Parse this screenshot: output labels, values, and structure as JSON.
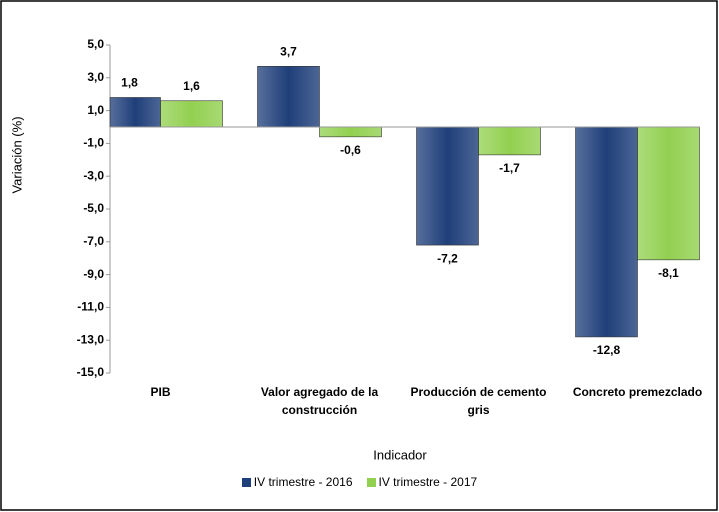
{
  "chart_data": {
    "type": "bar",
    "y_label": "Variación  (%)",
    "x_label": "Indicador",
    "categories": [
      "PIB",
      "Valor agregado de la construcción",
      "Producción de cemento gris",
      "Concreto premezclado"
    ],
    "series": [
      {
        "name": "IV trimestre - 2016",
        "color": "#1f3f7a",
        "values": [
          1.8,
          3.7,
          -7.2,
          -12.8
        ],
        "value_labels": [
          "1,8",
          "3,7",
          "-7,2",
          "-12,8"
        ]
      },
      {
        "name": "IV trimestre - 2017",
        "color": "#92d050",
        "values": [
          1.6,
          -0.6,
          -1.7,
          -8.1
        ],
        "value_labels": [
          "1,6",
          "-0,6",
          "-1,7",
          "-8,1"
        ]
      }
    ],
    "ylim": [
      -15,
      5
    ],
    "yticks": [
      {
        "value": 5,
        "label": "5,0"
      },
      {
        "value": 3,
        "label": "3,0"
      },
      {
        "value": 1,
        "label": "1,0"
      },
      {
        "value": -1,
        "label": "-1,0"
      },
      {
        "value": -3,
        "label": "-3,0"
      },
      {
        "value": -5,
        "label": "-5,0"
      },
      {
        "value": -7,
        "label": "-7,0"
      },
      {
        "value": -9,
        "label": "-9,0"
      },
      {
        "value": -11,
        "label": "-11,0"
      },
      {
        "value": -13,
        "label": "-13,0"
      },
      {
        "value": -15,
        "label": "-15,0"
      }
    ],
    "grid": false
  }
}
